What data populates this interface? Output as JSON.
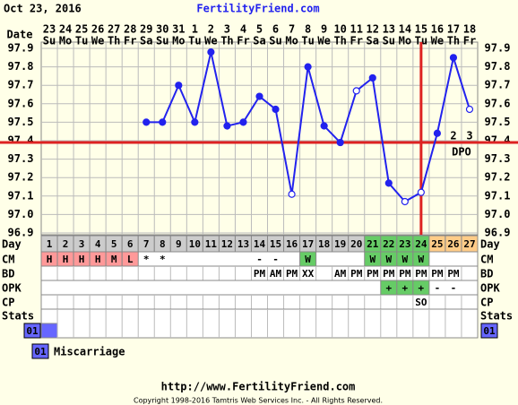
{
  "header": {
    "date": "Oct 23, 2016",
    "site": "FertilityFriend.com"
  },
  "chart_data": {
    "type": "line",
    "x_label": "Date",
    "categories": [
      "23",
      "24",
      "25",
      "26",
      "27",
      "28",
      "29",
      "30",
      "31",
      "1",
      "2",
      "3",
      "4",
      "5",
      "6",
      "7",
      "8",
      "9",
      "10",
      "11",
      "12",
      "13",
      "14",
      "15",
      "16",
      "17",
      "18"
    ],
    "weekdays": [
      "Su",
      "Mo",
      "Tu",
      "We",
      "Th",
      "Fr",
      "Sa",
      "Su",
      "Mo",
      "Tu",
      "We",
      "Th",
      "Fr",
      "Sa",
      "Su",
      "Mo",
      "Tu",
      "We",
      "Th",
      "Fr",
      "Sa",
      "Su",
      "Mo",
      "Tu",
      "We",
      "Th",
      "Fr"
    ],
    "values": [
      null,
      null,
      null,
      null,
      null,
      null,
      97.5,
      97.5,
      97.7,
      97.5,
      97.88,
      97.48,
      97.5,
      97.64,
      97.57,
      97.11,
      97.8,
      97.48,
      97.39,
      97.67,
      97.74,
      97.17,
      97.07,
      97.12,
      97.44,
      97.85,
      97.57
    ],
    "open_points": [
      false,
      false,
      false,
      false,
      false,
      false,
      false,
      false,
      false,
      false,
      false,
      false,
      false,
      false,
      false,
      true,
      false,
      false,
      false,
      true,
      false,
      false,
      true,
      true,
      false,
      false,
      true
    ],
    "color": "#2222ee",
    "ylim": [
      96.9,
      97.9
    ],
    "yticks": [
      96.9,
      {
        "value": 97,
        "label": "97.0"
      },
      97.1,
      97.2,
      97.3,
      97.4,
      97.5,
      97.6,
      97.7,
      97.8,
      97.9
    ],
    "grid": true,
    "coverline": 97.39,
    "coverline_color": "#dd2222",
    "ovulation_day": 24,
    "dpo_label": "DPO",
    "dpo": [
      null,
      null,
      null,
      null,
      null,
      null,
      null,
      null,
      null,
      null,
      null,
      null,
      null,
      null,
      null,
      null,
      null,
      null,
      null,
      null,
      null,
      null,
      null,
      null,
      null,
      2,
      3
    ],
    "rows": [
      {
        "label": "Day",
        "cells": [
          1,
          2,
          3,
          4,
          5,
          6,
          7,
          8,
          9,
          10,
          11,
          12,
          13,
          14,
          15,
          16,
          17,
          18,
          19,
          20,
          21,
          22,
          23,
          24,
          25,
          26,
          27
        ],
        "colors": [
          "#cccccc",
          "#cccccc",
          "#cccccc",
          "#cccccc",
          "#cccccc",
          "#cccccc",
          "#cccccc",
          "#cccccc",
          "#cccccc",
          "#cccccc",
          "#cccccc",
          "#cccccc",
          "#cccccc",
          "#cccccc",
          "#cccccc",
          "#cccccc",
          "#cccccc",
          "#cccccc",
          "#cccccc",
          "#cccccc",
          "#66cc66",
          "#66cc66",
          "#66cc66",
          "#66cc66",
          "#ffcc88",
          "#ffcc88",
          "#ffcc88"
        ]
      },
      {
        "label": "CM",
        "cells": [
          "H",
          "H",
          "H",
          "H",
          "M",
          "L",
          "*",
          "*",
          null,
          null,
          null,
          null,
          null,
          "-",
          "-",
          null,
          "W",
          null,
          null,
          null,
          "W",
          "W",
          "W",
          "W",
          null,
          null,
          null
        ],
        "colors": [
          "#ff9999",
          "#ff9999",
          "#ff9999",
          "#ff9999",
          "#ff9999",
          "#ff9999",
          null,
          null,
          null,
          null,
          null,
          null,
          null,
          null,
          null,
          null,
          "#66cc66",
          null,
          null,
          null,
          "#66cc66",
          "#66cc66",
          "#66cc66",
          "#66cc66",
          null,
          null,
          null
        ]
      },
      {
        "label": "BD",
        "cells": [
          null,
          null,
          null,
          null,
          null,
          null,
          null,
          null,
          null,
          null,
          null,
          null,
          null,
          "PM",
          "AM",
          "PM",
          "XX",
          null,
          "AM",
          "PM",
          "PM",
          "PM",
          "PM",
          "PM",
          "PM",
          "PM",
          null
        ]
      },
      {
        "label": "OPK",
        "cells": [
          null,
          null,
          null,
          null,
          null,
          null,
          null,
          null,
          null,
          null,
          null,
          null,
          null,
          null,
          null,
          null,
          null,
          null,
          null,
          null,
          null,
          "+",
          "+",
          "+",
          "-",
          "-",
          null
        ],
        "colors": [
          null,
          null,
          null,
          null,
          null,
          null,
          null,
          null,
          null,
          null,
          null,
          null,
          null,
          null,
          null,
          null,
          null,
          null,
          null,
          null,
          null,
          "#66cc66",
          "#66cc66",
          "#66cc66",
          null,
          null,
          null
        ]
      },
      {
        "label": "CP",
        "cells": [
          null,
          null,
          null,
          null,
          null,
          null,
          null,
          null,
          null,
          null,
          null,
          null,
          null,
          null,
          null,
          null,
          null,
          null,
          null,
          null,
          null,
          null,
          null,
          "SO",
          null,
          null,
          null
        ]
      },
      {
        "label": "Stats",
        "code": "01",
        "colors": [
          "#6666ff",
          null,
          null,
          null,
          null,
          null,
          null,
          null,
          null,
          null,
          null,
          null,
          null,
          null,
          null,
          null,
          null,
          null,
          null,
          null,
          null,
          null,
          null,
          null,
          null,
          null,
          null
        ]
      }
    ],
    "legend": {
      "code": "01",
      "label": "Miscarriage"
    }
  },
  "footer": {
    "url": "http://www.FertilityFriend.com",
    "copyright": "Copyright 1998-2016 Tamtris Web Services Inc. - All Rights Reserved."
  }
}
